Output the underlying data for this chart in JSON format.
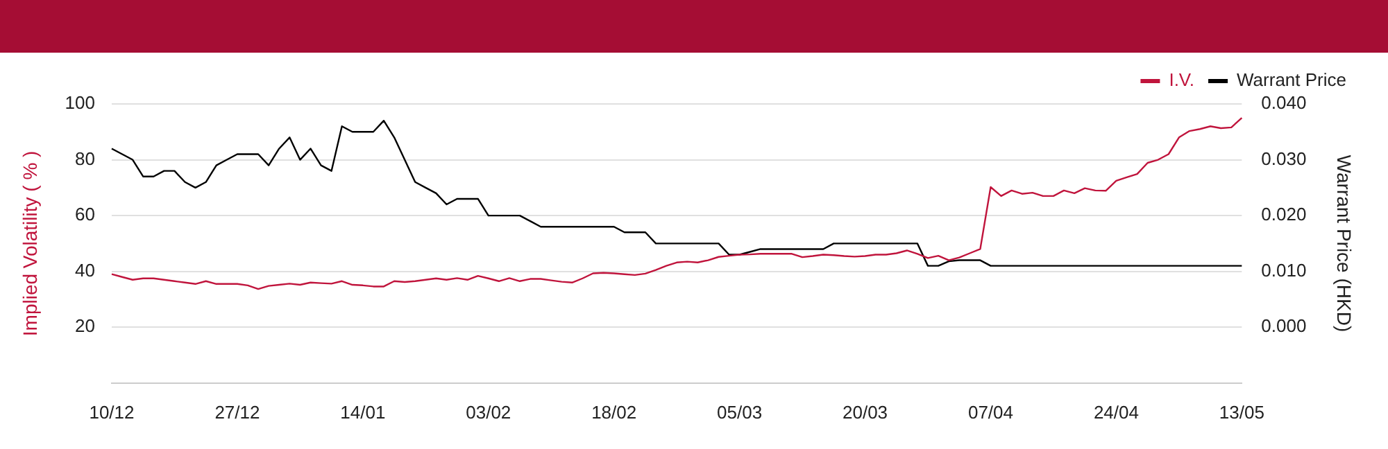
{
  "chart_data": {
    "type": "line",
    "categories": [
      "10/12",
      null,
      null,
      null,
      null,
      null,
      null,
      null,
      null,
      null,
      null,
      null,
      "27/12",
      null,
      null,
      null,
      null,
      null,
      null,
      null,
      null,
      null,
      null,
      null,
      "14/01",
      null,
      null,
      null,
      null,
      null,
      null,
      null,
      null,
      null,
      null,
      null,
      "03/02",
      null,
      null,
      null,
      null,
      null,
      null,
      null,
      null,
      null,
      null,
      null,
      "18/02",
      null,
      null,
      null,
      null,
      null,
      null,
      null,
      null,
      null,
      null,
      null,
      "05/03",
      null,
      null,
      null,
      null,
      null,
      null,
      null,
      null,
      null,
      null,
      null,
      "20/03",
      null,
      null,
      null,
      null,
      null,
      null,
      null,
      null,
      null,
      null,
      null,
      "07/04",
      null,
      null,
      null,
      null,
      null,
      null,
      null,
      null,
      null,
      null,
      null,
      "24/04",
      null,
      null,
      null,
      null,
      null,
      null,
      null,
      null,
      null,
      null,
      null,
      "13/05"
    ],
    "series": [
      {
        "name": "I.V.",
        "color": "#c0143c",
        "values": [
          39,
          38,
          37,
          37.5,
          37.5,
          37,
          36.5,
          36,
          35.5,
          36.5,
          35.5,
          35.5,
          35.5,
          35,
          33.7,
          34.8,
          35.2,
          35.6,
          35.2,
          36,
          35.8,
          35.6,
          36.5,
          35.2,
          35,
          34.6,
          34.6,
          36.5,
          36.2,
          36.5,
          37,
          37.5,
          37,
          37.6,
          37,
          38.4,
          37.5,
          36.5,
          37.6,
          36.5,
          37.3,
          37.3,
          36.8,
          36.3,
          36,
          37.5,
          39.3,
          39.5,
          39.3,
          39,
          38.7,
          39.2,
          40.5,
          42,
          43.2,
          43.5,
          43.2,
          44,
          45.2,
          45.6,
          46,
          46.1,
          46.3,
          46.3,
          46.3,
          46.3,
          45.1,
          45.5,
          46,
          45.8,
          45.5,
          45.3,
          45.5,
          46,
          46,
          46.5,
          47.5,
          46.3,
          44.8,
          45.6,
          44,
          45,
          46.5,
          48,
          70.2,
          67,
          69,
          67.8,
          68.2,
          67,
          67,
          69,
          68,
          69.8,
          69,
          68.9,
          72.5,
          73.7,
          74.9,
          78.9,
          80,
          82,
          88,
          90.3,
          91,
          92,
          91.3,
          91.6,
          95
        ]
      },
      {
        "name": "Warrant Price",
        "color": "#000000",
        "axis": "y2",
        "values": [
          0.032,
          0.031,
          0.03,
          0.027,
          0.027,
          0.028,
          0.028,
          0.026,
          0.025,
          0.026,
          0.029,
          0.03,
          0.031,
          0.031,
          0.031,
          0.029,
          0.032,
          0.034,
          0.03,
          0.032,
          0.029,
          0.028,
          0.036,
          0.035,
          0.035,
          0.035,
          0.037,
          0.034,
          0.03,
          0.026,
          0.025,
          0.024,
          0.022,
          0.023,
          0.023,
          0.023,
          0.02,
          0.02,
          0.02,
          0.02,
          0.019,
          0.018,
          0.018,
          0.018,
          0.018,
          0.018,
          0.018,
          0.018,
          0.018,
          0.017,
          0.017,
          0.017,
          0.015,
          0.015,
          0.015,
          0.015,
          0.015,
          0.015,
          0.015,
          0.013,
          0.013,
          0.0135,
          0.014,
          0.014,
          0.014,
          0.014,
          0.014,
          0.014,
          0.014,
          0.015,
          0.015,
          0.015,
          0.015,
          0.015,
          0.015,
          0.015,
          0.015,
          0.015,
          0.011,
          0.011,
          0.0118,
          0.012,
          0.012,
          0.012,
          0.011,
          0.011,
          0.011,
          0.011,
          0.011,
          0.011,
          0.011,
          0.011,
          0.011,
          0.011,
          0.011,
          0.011,
          0.011,
          0.011,
          0.011,
          0.011,
          0.011,
          0.011,
          0.011,
          0.011,
          0.011,
          0.011,
          0.011,
          0.011,
          0.011
        ]
      }
    ],
    "ylabel": "Implied Volatility ( % )",
    "y2label": "Warrant Price (HKD)",
    "ylim": [
      0,
      100
    ],
    "yticks": [
      20,
      40,
      60,
      80,
      100
    ],
    "y2lim": [
      -0.01,
      0.04
    ],
    "y2ticks": [
      {
        "value": 0,
        "label": "0.000"
      },
      {
        "value": 0.01,
        "label": "0.010"
      },
      {
        "value": 0.02,
        "label": "0.020"
      },
      {
        "value": 0.03,
        "label": "0.030"
      },
      {
        "value": 0.04,
        "label": "0.040"
      }
    ],
    "grid": "y",
    "legend": "top right",
    "marker": "none",
    "line_style": "solid"
  }
}
